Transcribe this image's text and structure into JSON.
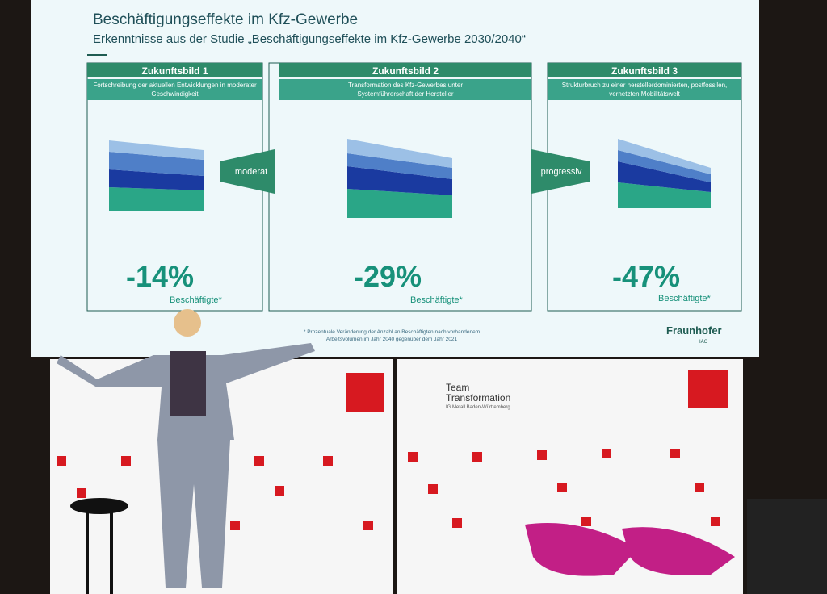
{
  "slide": {
    "title": "Beschäftigungseffekte im Kfz-Gewerbe",
    "subtitle": "Erkenntnisse aus der Studie „Beschäftigungseffekte im Kfz-Gewerbe 2030/2040“",
    "scenarios": [
      {
        "header": "Zukunftsbild 1",
        "description": "Fortschreibung der aktuellen Entwicklungen in moderater Geschwindigkeit",
        "change": "-14%",
        "unit": "Beschäftigte*"
      },
      {
        "header": "Zukunftsbild 2",
        "description": "Transformation des Kfz-Gewerbes unter Systemführerschaft der Hersteller",
        "change": "-29%",
        "unit": "Beschäftigte*"
      },
      {
        "header": "Zukunftsbild 3",
        "description": "Strukturbruch zu einer herstellerdominierten, postfossilen, vernetzten Mobilitätswelt",
        "change": "-47%",
        "unit": "Beschäftigte*"
      }
    ],
    "transitions": [
      "moderat",
      "progressiv"
    ],
    "footnote": "* Prozentuale Veränderung der Anzahl an Beschäftigten nach vorhandenem Arbeitsvolumen im Jahr 2040 gegenüber dem Jahr 2021",
    "logo": "Fraunhofer",
    "logo_sub": "IAO"
  },
  "banner": {
    "title": "Team Transformation",
    "subtitle": "IG Metall Baden-Württemberg"
  }
}
